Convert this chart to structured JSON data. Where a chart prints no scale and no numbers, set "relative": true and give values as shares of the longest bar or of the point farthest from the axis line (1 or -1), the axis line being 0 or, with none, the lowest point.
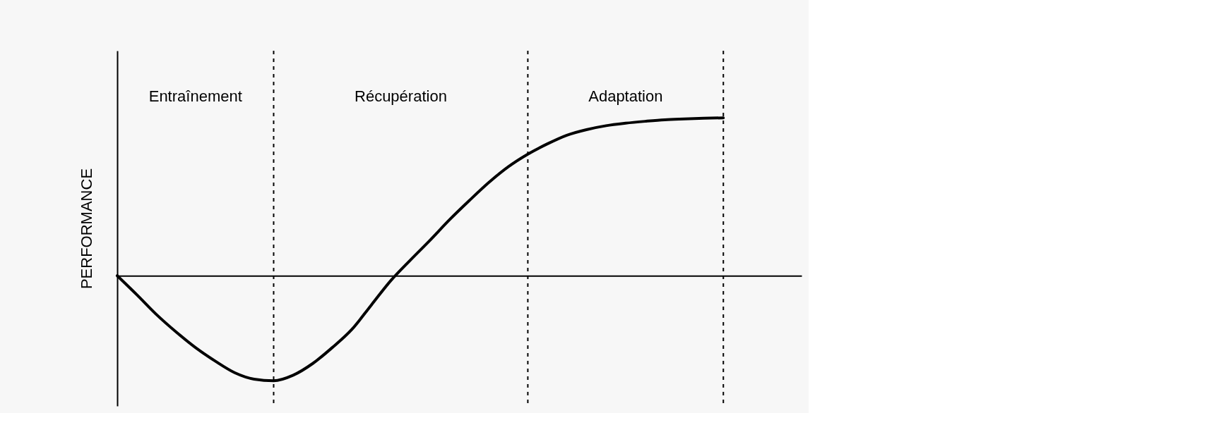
{
  "chart_data": {
    "type": "line",
    "relative": true,
    "ylabel": "PERFORMANCE",
    "marker": "none",
    "line_style": "solid",
    "categories": [
      null,
      null,
      null,
      null,
      null,
      null,
      null,
      null,
      null,
      null,
      null,
      null,
      null,
      null,
      null,
      null,
      null,
      null,
      null,
      null,
      null,
      null,
      null,
      null,
      null,
      null,
      null,
      null,
      null,
      null,
      null,
      null,
      null,
      null,
      null,
      null
    ],
    "series": [
      {
        "color": "#000000",
        "values": [
          0,
          -0.12,
          -0.245,
          -0.355,
          -0.455,
          -0.54,
          -0.614,
          -0.655,
          -0.665,
          -0.63,
          -0.556,
          -0.455,
          -0.34,
          -0.185,
          -0.03,
          0.1,
          0.225,
          0.355,
          0.475,
          0.59,
          0.69,
          0.77,
          0.835,
          0.89,
          0.925,
          0.95,
          0.966,
          0.978,
          0.988,
          0.993,
          0.997,
          1.0,
          null,
          null,
          null,
          null
        ]
      }
    ],
    "grid": "x",
    "annotations": [
      "Entraînement",
      "Récupération",
      "Adaptation"
    ]
  }
}
